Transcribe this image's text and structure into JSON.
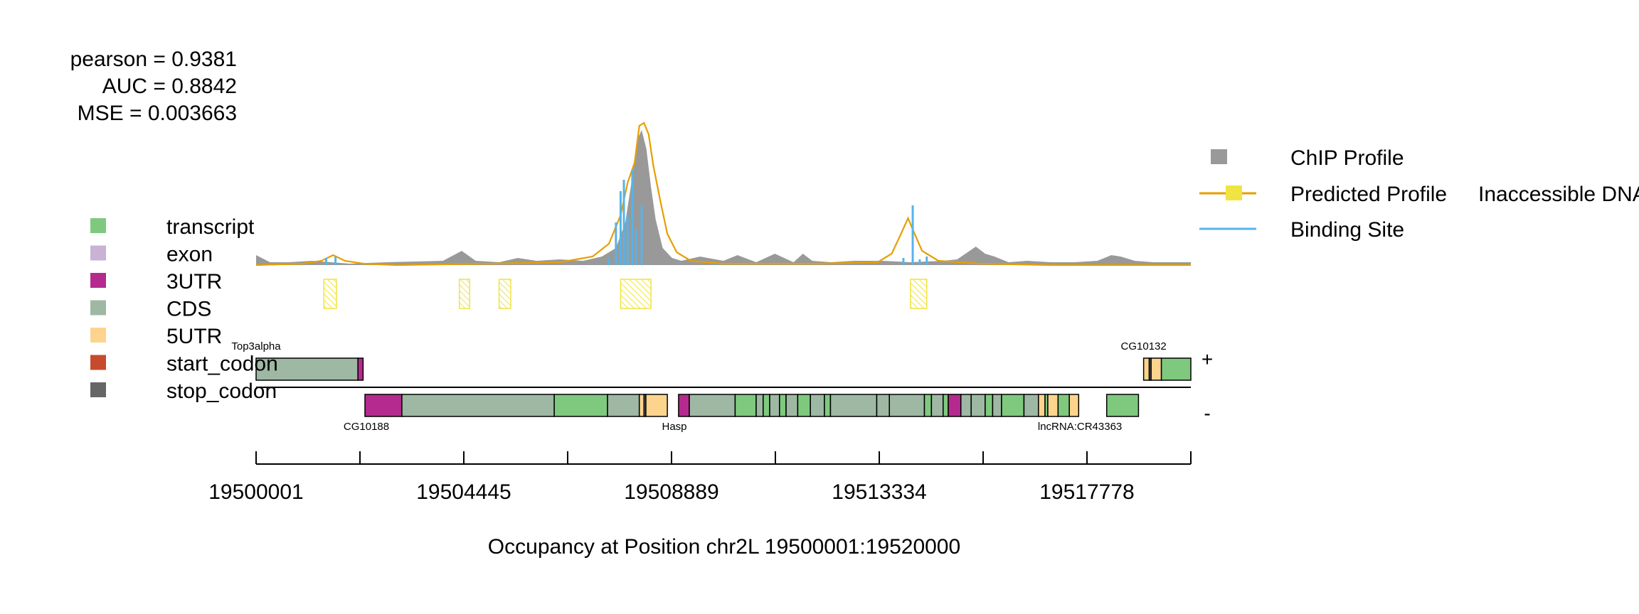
{
  "stats": {
    "pearson": "pearson = 0.9381",
    "auc": "AUC = 0.8842",
    "mse": "MSE = 0.003663"
  },
  "legend_right": [
    {
      "label": "ChIP Profile",
      "symbol": "box",
      "color": "#999999"
    },
    {
      "label": "Predicted Profile",
      "symbol": "line",
      "color": "#E69F00"
    },
    {
      "label": "Inaccessible DNA",
      "symbol": "box",
      "color": "#F0E442"
    },
    {
      "label": "Binding Site",
      "symbol": "line",
      "color": "#56B4E9"
    }
  ],
  "legend_left": [
    {
      "label": "transcript",
      "color": "#7FC97F"
    },
    {
      "label": "exon",
      "color": "#C9B2D5"
    },
    {
      "label": "3UTR",
      "color": "#B52A8E"
    },
    {
      "label": "CDS",
      "color": "#9EB8A3"
    },
    {
      "label": "5UTR",
      "color": "#FDD48D"
    },
    {
      "label": "start_codon",
      "color": "#C74A2C"
    },
    {
      "label": "stop_codon",
      "color": "#666666"
    }
  ],
  "strands": {
    "plus": "+",
    "minus": "-"
  },
  "chart_data": {
    "type": "area",
    "xlabel": "Occupancy at Position chr2L 19500001:19520000",
    "xlim": [
      19500001,
      19520000
    ],
    "ylim": [
      0,
      1
    ],
    "x_ticks": [
      19500001,
      19502223,
      19504445,
      19506667,
      19508889,
      19511111,
      19513334,
      19515556,
      19517778,
      19520000
    ],
    "x_tick_labels": [
      "19500001",
      "",
      "19504445",
      "",
      "19508889",
      "",
      "19513334",
      "",
      "19517778",
      ""
    ],
    "chip_profile": {
      "x": [
        19500001,
        19500300,
        19500700,
        19501200,
        19501600,
        19502000,
        19502800,
        19504000,
        19504400,
        19504700,
        19505200,
        19505600,
        19506000,
        19506500,
        19507000,
        19507400,
        19507700,
        19507900,
        19508050,
        19508150,
        19508250,
        19508350,
        19508450,
        19508550,
        19508700,
        19508900,
        19509100,
        19509500,
        19510000,
        19510300,
        19510700,
        19511100,
        19511500,
        19511700,
        19511900,
        19512300,
        19512800,
        19513400,
        19514000,
        19514700,
        19515000,
        19515400,
        19515600,
        19515800,
        19516100,
        19516500,
        19517000,
        19517500,
        19518000,
        19518300,
        19518500,
        19518800,
        19519200,
        19520000
      ],
      "y": [
        0.07,
        0.02,
        0.02,
        0.03,
        0.02,
        0.01,
        0.02,
        0.03,
        0.1,
        0.03,
        0.02,
        0.05,
        0.03,
        0.04,
        0.03,
        0.06,
        0.12,
        0.3,
        0.62,
        0.88,
        0.95,
        0.82,
        0.55,
        0.32,
        0.12,
        0.05,
        0.03,
        0.06,
        0.03,
        0.07,
        0.02,
        0.08,
        0.02,
        0.08,
        0.03,
        0.02,
        0.03,
        0.03,
        0.02,
        0.03,
        0.04,
        0.13,
        0.08,
        0.06,
        0.02,
        0.03,
        0.02,
        0.02,
        0.03,
        0.07,
        0.06,
        0.03,
        0.02,
        0.02
      ]
    },
    "predicted_profile": {
      "x": [
        19500001,
        19501000,
        19501400,
        19501650,
        19501900,
        19502300,
        19503000,
        19505000,
        19506500,
        19507200,
        19507550,
        19507800,
        19507950,
        19508100,
        19508200,
        19508300,
        19508400,
        19508500,
        19508650,
        19508800,
        19509000,
        19509300,
        19510000,
        19512000,
        19513300,
        19513600,
        19513800,
        19513950,
        19514050,
        19514250,
        19514600,
        19515500,
        19517000,
        19520000
      ],
      "y": [
        0.0,
        0.01,
        0.03,
        0.07,
        0.03,
        0.01,
        0.0,
        0.01,
        0.02,
        0.06,
        0.15,
        0.35,
        0.58,
        0.72,
        0.98,
        1.0,
        0.92,
        0.7,
        0.45,
        0.22,
        0.09,
        0.03,
        0.01,
        0.01,
        0.02,
        0.08,
        0.22,
        0.33,
        0.25,
        0.1,
        0.03,
        0.01,
        0.0,
        0.0
      ]
    },
    "binding_sites": [
      {
        "x": 19501500,
        "height": 0.05
      },
      {
        "x": 19501700,
        "height": 0.06
      },
      {
        "x": 19507550,
        "height": 0.05
      },
      {
        "x": 19507700,
        "height": 0.3
      },
      {
        "x": 19507800,
        "height": 0.52
      },
      {
        "x": 19507870,
        "height": 0.6
      },
      {
        "x": 19507950,
        "height": 0.35
      },
      {
        "x": 19508050,
        "height": 0.67
      },
      {
        "x": 19508130,
        "height": 0.25
      },
      {
        "x": 19508250,
        "height": 0.42
      },
      {
        "x": 19513850,
        "height": 0.05
      },
      {
        "x": 19514050,
        "height": 0.42
      },
      {
        "x": 19514200,
        "height": 0.04
      },
      {
        "x": 19514350,
        "height": 0.06
      },
      {
        "x": 19509800,
        "height": 0.01
      }
    ],
    "inaccessible_dna": [
      {
        "start": 19501450,
        "end": 19501720
      },
      {
        "start": 19504350,
        "end": 19504570
      },
      {
        "start": 19505200,
        "end": 19505450
      },
      {
        "start": 19507800,
        "end": 19508450
      },
      {
        "start": 19514000,
        "end": 19514350
      }
    ],
    "genes_plus": [
      {
        "name": "Top3alpha",
        "segments": [
          {
            "start": 19500001,
            "end": 19502180,
            "feature": "CDS"
          },
          {
            "start": 19502180,
            "end": 19502290,
            "feature": "3UTR"
          }
        ]
      },
      {
        "name": "CG10132",
        "segments": [
          {
            "start": 19518990,
            "end": 19519110,
            "feature": "5UTR"
          },
          {
            "start": 19519110,
            "end": 19519150,
            "feature": "stop_codon"
          },
          {
            "start": 19519150,
            "end": 19519370,
            "feature": "5UTR"
          },
          {
            "start": 19519370,
            "end": 19520000,
            "feature": "transcript"
          }
        ]
      }
    ],
    "genes_minus": [
      {
        "name": "CG10188",
        "segments": [
          {
            "start": 19502330,
            "end": 19503120,
            "feature": "3UTR"
          },
          {
            "start": 19503120,
            "end": 19506380,
            "feature": "CDS"
          },
          {
            "start": 19506380,
            "end": 19507520,
            "feature": "transcript"
          },
          {
            "start": 19507520,
            "end": 19508200,
            "feature": "CDS"
          },
          {
            "start": 19508200,
            "end": 19508300,
            "feature": "5UTR"
          },
          {
            "start": 19508300,
            "end": 19508340,
            "feature": "stop_codon"
          },
          {
            "start": 19508340,
            "end": 19508800,
            "feature": "5UTR"
          }
        ]
      },
      {
        "name": "Hasp",
        "segments": [
          {
            "start": 19509040,
            "end": 19509270,
            "feature": "3UTR"
          },
          {
            "start": 19509270,
            "end": 19510250,
            "feature": "CDS"
          },
          {
            "start": 19510250,
            "end": 19510700,
            "feature": "transcript"
          },
          {
            "start": 19510700,
            "end": 19510850,
            "feature": "CDS"
          },
          {
            "start": 19510850,
            "end": 19510990,
            "feature": "transcript"
          },
          {
            "start": 19510990,
            "end": 19511200,
            "feature": "CDS"
          },
          {
            "start": 19511200,
            "end": 19511340,
            "feature": "transcript"
          },
          {
            "start": 19511340,
            "end": 19511590,
            "feature": "CDS"
          },
          {
            "start": 19511590,
            "end": 19511860,
            "feature": "transcript"
          },
          {
            "start": 19511860,
            "end": 19512160,
            "feature": "CDS"
          },
          {
            "start": 19512160,
            "end": 19512290,
            "feature": "transcript"
          },
          {
            "start": 19512290,
            "end": 19513280,
            "feature": "CDS"
          },
          {
            "start": 19513280,
            "end": 19513550,
            "feature": "CDS"
          },
          {
            "start": 19513550,
            "end": 19514300,
            "feature": "CDS"
          },
          {
            "start": 19514300,
            "end": 19514450,
            "feature": "transcript"
          },
          {
            "start": 19514450,
            "end": 19514700,
            "feature": "CDS"
          },
          {
            "start": 19514700,
            "end": 19514810,
            "feature": "transcript"
          },
          {
            "start": 19514810,
            "end": 19515080,
            "feature": "3UTR"
          },
          {
            "start": 19515080,
            "end": 19515300,
            "feature": "CDS"
          },
          {
            "start": 19515300,
            "end": 19515600,
            "feature": "CDS"
          },
          {
            "start": 19515600,
            "end": 19515760,
            "feature": "transcript"
          },
          {
            "start": 19515760,
            "end": 19515950,
            "feature": "CDS"
          },
          {
            "start": 19515950,
            "end": 19516430,
            "feature": "transcript"
          },
          {
            "start": 19516430,
            "end": 19516740,
            "feature": "CDS"
          },
          {
            "start": 19516740,
            "end": 19516880,
            "feature": "5UTR"
          },
          {
            "start": 19516880,
            "end": 19516940,
            "feature": "transcript"
          },
          {
            "start": 19516940,
            "end": 19517160,
            "feature": "5UTR"
          },
          {
            "start": 19517160,
            "end": 19517400,
            "feature": "transcript"
          },
          {
            "start": 19517400,
            "end": 19517600,
            "feature": "5UTR"
          }
        ]
      },
      {
        "name": "lncRNA:CR43363",
        "segments": [
          {
            "start": 19518200,
            "end": 19518880,
            "feature": "transcript"
          }
        ]
      }
    ]
  }
}
